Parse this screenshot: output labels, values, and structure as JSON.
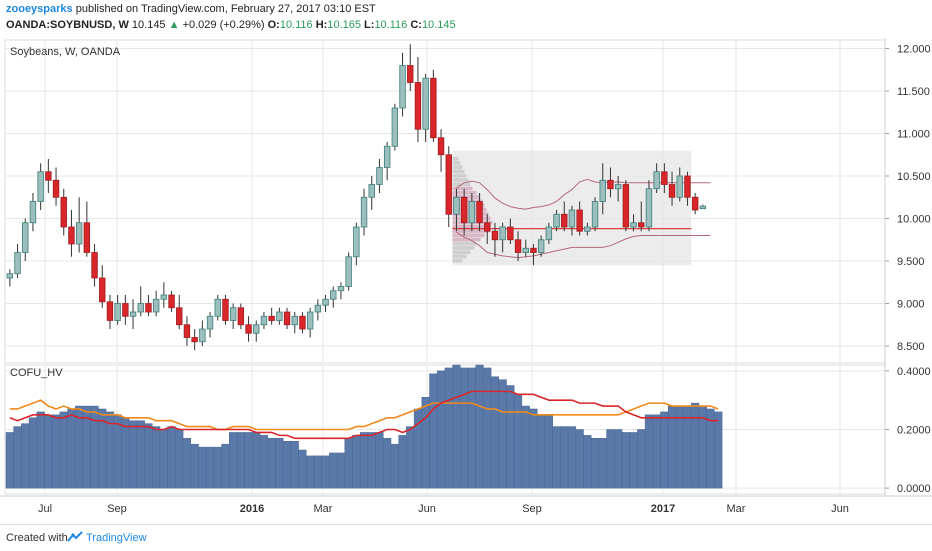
{
  "header": {
    "author": "zooeysparks",
    "published_text": "published on TradingView.com, February 27, 2017 03:10 EST",
    "symbol": "OANDA:SOYBNUSD, W",
    "last": "10.145",
    "change": "+0.029 (+0.29%)",
    "o_label": "O:",
    "o_value": "10.116",
    "h_label": "H:",
    "h_value": "10.165",
    "l_label": "L:",
    "l_value": "10.116",
    "c_label": "C:",
    "c_value": "10.145"
  },
  "footer": {
    "created_with": "Created with",
    "brand": "TradingView"
  },
  "colors": {
    "up": "#3d7d7a",
    "up_fill": "#9bbfbd",
    "down": "#d9262b",
    "hv_bars": "#5a79a9",
    "hv_line_red": "#d9262b",
    "hv_line_orange": "#f08a1c",
    "profile_box": "#e6e6e6",
    "profile_bars": "#d8b7c6",
    "grid": "#e7e7e7"
  },
  "chart_data": [
    {
      "type": "candlestick",
      "title": "Soybeans, W, OANDA",
      "ylim": [
        8.3,
        12.1
      ],
      "y_ticks": [
        "12.000",
        "11.500",
        "11.000",
        "10.500",
        "10.000",
        "9.500",
        "9.000",
        "8.500"
      ],
      "x_ticks": [
        "Jul",
        "Sep",
        "2016",
        "Mar",
        "Jun",
        "Sep",
        "2017",
        "Mar",
        "Jun"
      ],
      "x_tick_bold": [
        false,
        false,
        true,
        false,
        false,
        false,
        true,
        false,
        false
      ],
      "candles": [
        {
          "o": 9.3,
          "h": 9.4,
          "l": 9.2,
          "c": 9.35
        },
        {
          "o": 9.35,
          "h": 9.7,
          "l": 9.3,
          "c": 9.6
        },
        {
          "o": 9.6,
          "h": 10.0,
          "l": 9.5,
          "c": 9.95
        },
        {
          "o": 9.95,
          "h": 10.3,
          "l": 9.85,
          "c": 10.2
        },
        {
          "o": 10.2,
          "h": 10.65,
          "l": 10.1,
          "c": 10.55
        },
        {
          "o": 10.55,
          "h": 10.7,
          "l": 10.3,
          "c": 10.45
        },
        {
          "o": 10.45,
          "h": 10.6,
          "l": 10.15,
          "c": 10.25
        },
        {
          "o": 10.25,
          "h": 10.35,
          "l": 9.8,
          "c": 9.9
        },
        {
          "o": 9.9,
          "h": 10.1,
          "l": 9.55,
          "c": 9.7
        },
        {
          "o": 9.7,
          "h": 10.25,
          "l": 9.6,
          "c": 9.95
        },
        {
          "o": 9.95,
          "h": 10.2,
          "l": 9.55,
          "c": 9.6
        },
        {
          "o": 9.6,
          "h": 9.7,
          "l": 9.2,
          "c": 9.3
        },
        {
          "o": 9.3,
          "h": 9.45,
          "l": 8.95,
          "c": 9.02
        },
        {
          "o": 9.02,
          "h": 9.1,
          "l": 8.7,
          "c": 8.8
        },
        {
          "o": 8.8,
          "h": 9.1,
          "l": 8.75,
          "c": 9.0
        },
        {
          "o": 9.0,
          "h": 9.1,
          "l": 8.75,
          "c": 8.85
        },
        {
          "o": 8.85,
          "h": 9.05,
          "l": 8.7,
          "c": 8.9
        },
        {
          "o": 8.9,
          "h": 9.2,
          "l": 8.85,
          "c": 9.0
        },
        {
          "o": 9.0,
          "h": 9.1,
          "l": 8.85,
          "c": 8.9
        },
        {
          "o": 8.9,
          "h": 9.15,
          "l": 8.85,
          "c": 9.05
        },
        {
          "o": 9.05,
          "h": 9.25,
          "l": 8.95,
          "c": 9.1
        },
        {
          "o": 9.1,
          "h": 9.15,
          "l": 8.9,
          "c": 8.95
        },
        {
          "o": 8.95,
          "h": 9.1,
          "l": 8.7,
          "c": 8.75
        },
        {
          "o": 8.75,
          "h": 8.85,
          "l": 8.5,
          "c": 8.6
        },
        {
          "o": 8.6,
          "h": 8.7,
          "l": 8.45,
          "c": 8.55
        },
        {
          "o": 8.55,
          "h": 8.8,
          "l": 8.5,
          "c": 8.7
        },
        {
          "o": 8.7,
          "h": 8.9,
          "l": 8.6,
          "c": 8.85
        },
        {
          "o": 8.85,
          "h": 9.1,
          "l": 8.8,
          "c": 9.05
        },
        {
          "o": 9.05,
          "h": 9.1,
          "l": 8.75,
          "c": 8.8
        },
        {
          "o": 8.8,
          "h": 9.0,
          "l": 8.7,
          "c": 8.95
        },
        {
          "o": 8.95,
          "h": 9.0,
          "l": 8.7,
          "c": 8.75
        },
        {
          "o": 8.75,
          "h": 8.85,
          "l": 8.55,
          "c": 8.65
        },
        {
          "o": 8.65,
          "h": 8.8,
          "l": 8.55,
          "c": 8.75
        },
        {
          "o": 8.75,
          "h": 8.9,
          "l": 8.7,
          "c": 8.85
        },
        {
          "o": 8.85,
          "h": 8.95,
          "l": 8.75,
          "c": 8.8
        },
        {
          "o": 8.8,
          "h": 8.95,
          "l": 8.75,
          "c": 8.9
        },
        {
          "o": 8.9,
          "h": 8.95,
          "l": 8.7,
          "c": 8.75
        },
        {
          "o": 8.75,
          "h": 8.9,
          "l": 8.65,
          "c": 8.85
        },
        {
          "o": 8.85,
          "h": 8.9,
          "l": 8.65,
          "c": 8.7
        },
        {
          "o": 8.7,
          "h": 8.95,
          "l": 8.6,
          "c": 8.9
        },
        {
          "o": 8.9,
          "h": 9.05,
          "l": 8.8,
          "c": 8.98
        },
        {
          "o": 8.98,
          "h": 9.1,
          "l": 8.9,
          "c": 9.05
        },
        {
          "o": 9.05,
          "h": 9.2,
          "l": 8.95,
          "c": 9.15
        },
        {
          "o": 9.15,
          "h": 9.25,
          "l": 9.05,
          "c": 9.2
        },
        {
          "o": 9.2,
          "h": 9.6,
          "l": 9.15,
          "c": 9.55
        },
        {
          "o": 9.55,
          "h": 9.95,
          "l": 9.45,
          "c": 9.9
        },
        {
          "o": 9.9,
          "h": 10.35,
          "l": 9.8,
          "c": 10.25
        },
        {
          "o": 10.25,
          "h": 10.5,
          "l": 10.1,
          "c": 10.4
        },
        {
          "o": 10.4,
          "h": 10.7,
          "l": 10.3,
          "c": 10.6
        },
        {
          "o": 10.6,
          "h": 10.9,
          "l": 10.45,
          "c": 10.85
        },
        {
          "o": 10.85,
          "h": 11.35,
          "l": 10.8,
          "c": 11.3
        },
        {
          "o": 11.3,
          "h": 11.95,
          "l": 11.2,
          "c": 11.8
        },
        {
          "o": 11.8,
          "h": 12.05,
          "l": 11.5,
          "c": 11.6
        },
        {
          "o": 11.6,
          "h": 11.9,
          "l": 10.9,
          "c": 11.05
        },
        {
          "o": 11.05,
          "h": 11.7,
          "l": 10.9,
          "c": 11.65
        },
        {
          "o": 11.65,
          "h": 11.75,
          "l": 10.9,
          "c": 10.95
        },
        {
          "o": 10.95,
          "h": 11.05,
          "l": 10.55,
          "c": 10.75
        },
        {
          "o": 10.75,
          "h": 10.85,
          "l": 9.9,
          "c": 10.05
        },
        {
          "o": 10.05,
          "h": 10.35,
          "l": 9.85,
          "c": 10.25
        },
        {
          "o": 10.25,
          "h": 10.35,
          "l": 9.8,
          "c": 9.95
        },
        {
          "o": 9.95,
          "h": 10.3,
          "l": 9.85,
          "c": 10.2
        },
        {
          "o": 10.2,
          "h": 10.3,
          "l": 9.85,
          "c": 9.95
        },
        {
          "o": 9.95,
          "h": 10.05,
          "l": 9.7,
          "c": 9.85
        },
        {
          "o": 9.85,
          "h": 9.95,
          "l": 9.55,
          "c": 9.75
        },
        {
          "o": 9.75,
          "h": 9.95,
          "l": 9.6,
          "c": 9.9
        },
        {
          "o": 9.9,
          "h": 10.0,
          "l": 9.7,
          "c": 9.75
        },
        {
          "o": 9.75,
          "h": 9.85,
          "l": 9.5,
          "c": 9.6
        },
        {
          "o": 9.6,
          "h": 9.75,
          "l": 9.55,
          "c": 9.65
        },
        {
          "o": 9.65,
          "h": 9.7,
          "l": 9.45,
          "c": 9.6
        },
        {
          "o": 9.6,
          "h": 9.8,
          "l": 9.55,
          "c": 9.75
        },
        {
          "o": 9.75,
          "h": 9.95,
          "l": 9.7,
          "c": 9.9
        },
        {
          "o": 9.9,
          "h": 10.1,
          "l": 9.85,
          "c": 10.05
        },
        {
          "o": 10.05,
          "h": 10.2,
          "l": 9.85,
          "c": 9.9
        },
        {
          "o": 9.9,
          "h": 10.15,
          "l": 9.8,
          "c": 10.1
        },
        {
          "o": 10.1,
          "h": 10.2,
          "l": 9.8,
          "c": 9.85
        },
        {
          "o": 9.85,
          "h": 9.95,
          "l": 9.8,
          "c": 9.9
        },
        {
          "o": 9.9,
          "h": 10.25,
          "l": 9.85,
          "c": 10.2
        },
        {
          "o": 10.2,
          "h": 10.65,
          "l": 10.05,
          "c": 10.45
        },
        {
          "o": 10.45,
          "h": 10.6,
          "l": 10.25,
          "c": 10.35
        },
        {
          "o": 10.35,
          "h": 10.5,
          "l": 10.2,
          "c": 10.4
        },
        {
          "o": 10.4,
          "h": 10.45,
          "l": 9.85,
          "c": 9.9
        },
        {
          "o": 9.9,
          "h": 10.05,
          "l": 9.85,
          "c": 9.95
        },
        {
          "o": 9.95,
          "h": 10.2,
          "l": 9.85,
          "c": 9.9
        },
        {
          "o": 9.9,
          "h": 10.45,
          "l": 9.85,
          "c": 10.35
        },
        {
          "o": 10.35,
          "h": 10.65,
          "l": 10.3,
          "c": 10.55
        },
        {
          "o": 10.55,
          "h": 10.65,
          "l": 10.3,
          "c": 10.4
        },
        {
          "o": 10.4,
          "h": 10.55,
          "l": 10.15,
          "c": 10.25
        },
        {
          "o": 10.25,
          "h": 10.6,
          "l": 10.2,
          "c": 10.5
        },
        {
          "o": 10.5,
          "h": 10.55,
          "l": 10.15,
          "c": 10.25
        },
        {
          "o": 10.25,
          "h": 10.3,
          "l": 10.05,
          "c": 10.1
        },
        {
          "o": 10.116,
          "h": 10.165,
          "l": 10.116,
          "c": 10.145
        }
      ],
      "profile_levels": [
        9.5,
        9.55,
        9.6,
        9.65,
        9.7,
        9.75,
        9.8,
        9.85,
        9.9,
        9.95,
        10.0,
        10.05,
        10.1,
        10.15,
        10.2,
        10.25,
        10.3,
        10.35,
        10.4,
        10.45,
        10.5,
        10.55,
        10.6,
        10.65,
        10.7
      ],
      "profile_volumes": [
        0.25,
        0.35,
        0.45,
        0.55,
        0.6,
        0.7,
        0.8,
        0.9,
        0.95,
        1.0,
        0.95,
        0.9,
        0.85,
        0.8,
        0.75,
        0.7,
        0.6,
        0.5,
        0.45,
        0.4,
        0.35,
        0.3,
        0.25,
        0.2,
        0.15
      ],
      "profile_poc": 9.88,
      "profile_upper": [
        10.36,
        10.42,
        10.44,
        10.42,
        10.34,
        10.24,
        10.18,
        10.14,
        10.12,
        10.11,
        10.13,
        10.14,
        10.16,
        10.2,
        10.28,
        10.34,
        10.43,
        10.46,
        10.43,
        10.42,
        10.43,
        10.43,
        10.42,
        10.42,
        10.42,
        10.42,
        10.42,
        10.42,
        10.42,
        10.42,
        10.42,
        10.42,
        10.42,
        10.42
      ],
      "profile_lower": [
        9.84,
        9.78,
        9.74,
        9.68,
        9.6,
        9.58,
        9.56,
        9.55,
        9.54,
        9.55,
        9.56,
        9.58,
        9.6,
        9.62,
        9.64,
        9.66,
        9.66,
        9.66,
        9.66,
        9.66,
        9.68,
        9.72,
        9.76,
        9.79,
        9.8,
        9.8,
        9.8,
        9.8,
        9.8,
        9.8,
        9.8,
        9.8,
        9.8,
        9.8
      ]
    },
    {
      "type": "bar",
      "title": "COFU_HV",
      "ylim": [
        -0.02,
        0.42
      ],
      "y_ticks": [
        "0.4000",
        "0.2000",
        "0.0000"
      ],
      "hv_values": [
        0.19,
        0.21,
        0.22,
        0.24,
        0.26,
        0.25,
        0.25,
        0.26,
        0.27,
        0.28,
        0.28,
        0.28,
        0.27,
        0.26,
        0.25,
        0.24,
        0.23,
        0.23,
        0.22,
        0.21,
        0.2,
        0.21,
        0.2,
        0.17,
        0.15,
        0.14,
        0.14,
        0.14,
        0.15,
        0.19,
        0.19,
        0.19,
        0.19,
        0.18,
        0.17,
        0.17,
        0.16,
        0.16,
        0.13,
        0.11,
        0.11,
        0.11,
        0.12,
        0.12,
        0.17,
        0.18,
        0.19,
        0.19,
        0.19,
        0.17,
        0.15,
        0.18,
        0.21,
        0.27,
        0.31,
        0.39,
        0.4,
        0.41,
        0.42,
        0.41,
        0.41,
        0.42,
        0.41,
        0.38,
        0.37,
        0.35,
        0.32,
        0.28,
        0.27,
        0.25,
        0.25,
        0.21,
        0.21,
        0.21,
        0.2,
        0.18,
        0.17,
        0.17,
        0.2,
        0.2,
        0.19,
        0.19,
        0.2,
        0.25,
        0.25,
        0.26,
        0.28,
        0.28,
        0.28,
        0.29,
        0.28,
        0.27,
        0.26
      ],
      "hv_red": [
        0.24,
        0.23,
        0.24,
        0.25,
        0.25,
        0.25,
        0.24,
        0.24,
        0.25,
        0.24,
        0.24,
        0.23,
        0.23,
        0.22,
        0.22,
        0.21,
        0.21,
        0.21,
        0.21,
        0.2,
        0.2,
        0.21,
        0.2,
        0.2,
        0.2,
        0.2,
        0.2,
        0.2,
        0.2,
        0.2,
        0.2,
        0.2,
        0.19,
        0.19,
        0.19,
        0.18,
        0.18,
        0.17,
        0.17,
        0.17,
        0.17,
        0.17,
        0.17,
        0.17,
        0.17,
        0.18,
        0.18,
        0.18,
        0.19,
        0.2,
        0.2,
        0.19,
        0.2,
        0.22,
        0.24,
        0.27,
        0.29,
        0.3,
        0.31,
        0.32,
        0.33,
        0.33,
        0.33,
        0.33,
        0.33,
        0.33,
        0.32,
        0.32,
        0.32,
        0.31,
        0.3,
        0.3,
        0.3,
        0.3,
        0.29,
        0.29,
        0.29,
        0.28,
        0.28,
        0.28,
        0.26,
        0.25,
        0.24,
        0.24,
        0.24,
        0.24,
        0.24,
        0.24,
        0.24,
        0.24,
        0.24,
        0.23,
        0.23
      ],
      "hv_orange": [
        0.27,
        0.27,
        0.28,
        0.29,
        0.3,
        0.28,
        0.27,
        0.28,
        0.27,
        0.27,
        0.26,
        0.26,
        0.25,
        0.25,
        0.25,
        0.24,
        0.24,
        0.24,
        0.24,
        0.23,
        0.23,
        0.23,
        0.22,
        0.21,
        0.21,
        0.21,
        0.21,
        0.2,
        0.2,
        0.21,
        0.21,
        0.21,
        0.2,
        0.2,
        0.2,
        0.2,
        0.2,
        0.2,
        0.2,
        0.2,
        0.2,
        0.2,
        0.2,
        0.2,
        0.2,
        0.21,
        0.21,
        0.22,
        0.23,
        0.24,
        0.24,
        0.25,
        0.26,
        0.27,
        0.28,
        0.29,
        0.29,
        0.29,
        0.29,
        0.29,
        0.29,
        0.28,
        0.27,
        0.27,
        0.26,
        0.26,
        0.26,
        0.26,
        0.25,
        0.25,
        0.25,
        0.25,
        0.25,
        0.25,
        0.25,
        0.25,
        0.25,
        0.25,
        0.25,
        0.25,
        0.26,
        0.27,
        0.28,
        0.29,
        0.29,
        0.29,
        0.28,
        0.28,
        0.28,
        0.28,
        0.28,
        0.28,
        0.27
      ]
    }
  ]
}
